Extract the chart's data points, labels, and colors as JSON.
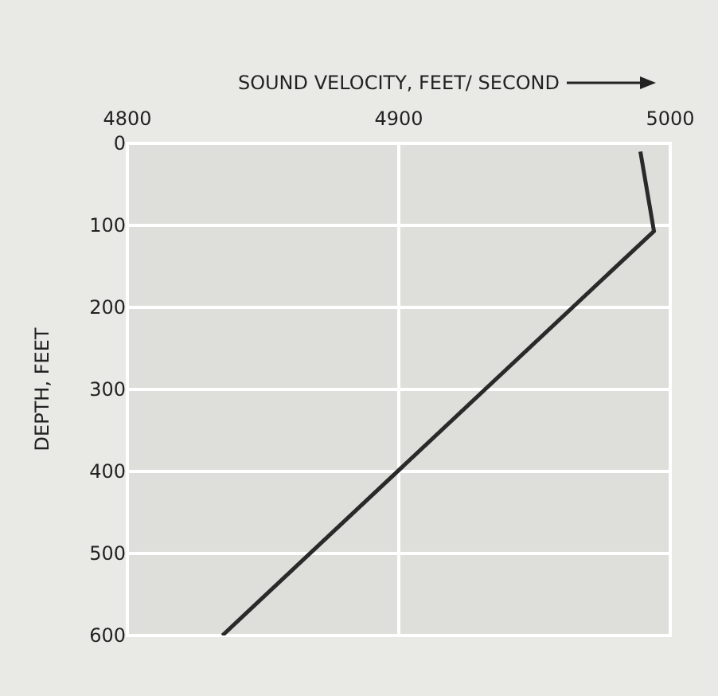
{
  "chart_data": {
    "type": "line",
    "xlabel": "SOUND VELOCITY, FEET/ SECOND",
    "ylabel": "DEPTH, FEET",
    "series": [
      {
        "color": "#2a2a2a",
        "x": [
          4989,
          4994,
          4835
        ],
        "values": [
          10,
          107,
          600
        ]
      }
    ],
    "xlim": [
      4800,
      5000
    ],
    "xticks": [
      4800,
      4900,
      5000
    ],
    "ylim": [
      600,
      0
    ],
    "yticks": [
      0,
      100,
      200,
      300,
      400,
      500,
      600
    ],
    "grid": true,
    "marker": "none",
    "line_style": "solid"
  }
}
